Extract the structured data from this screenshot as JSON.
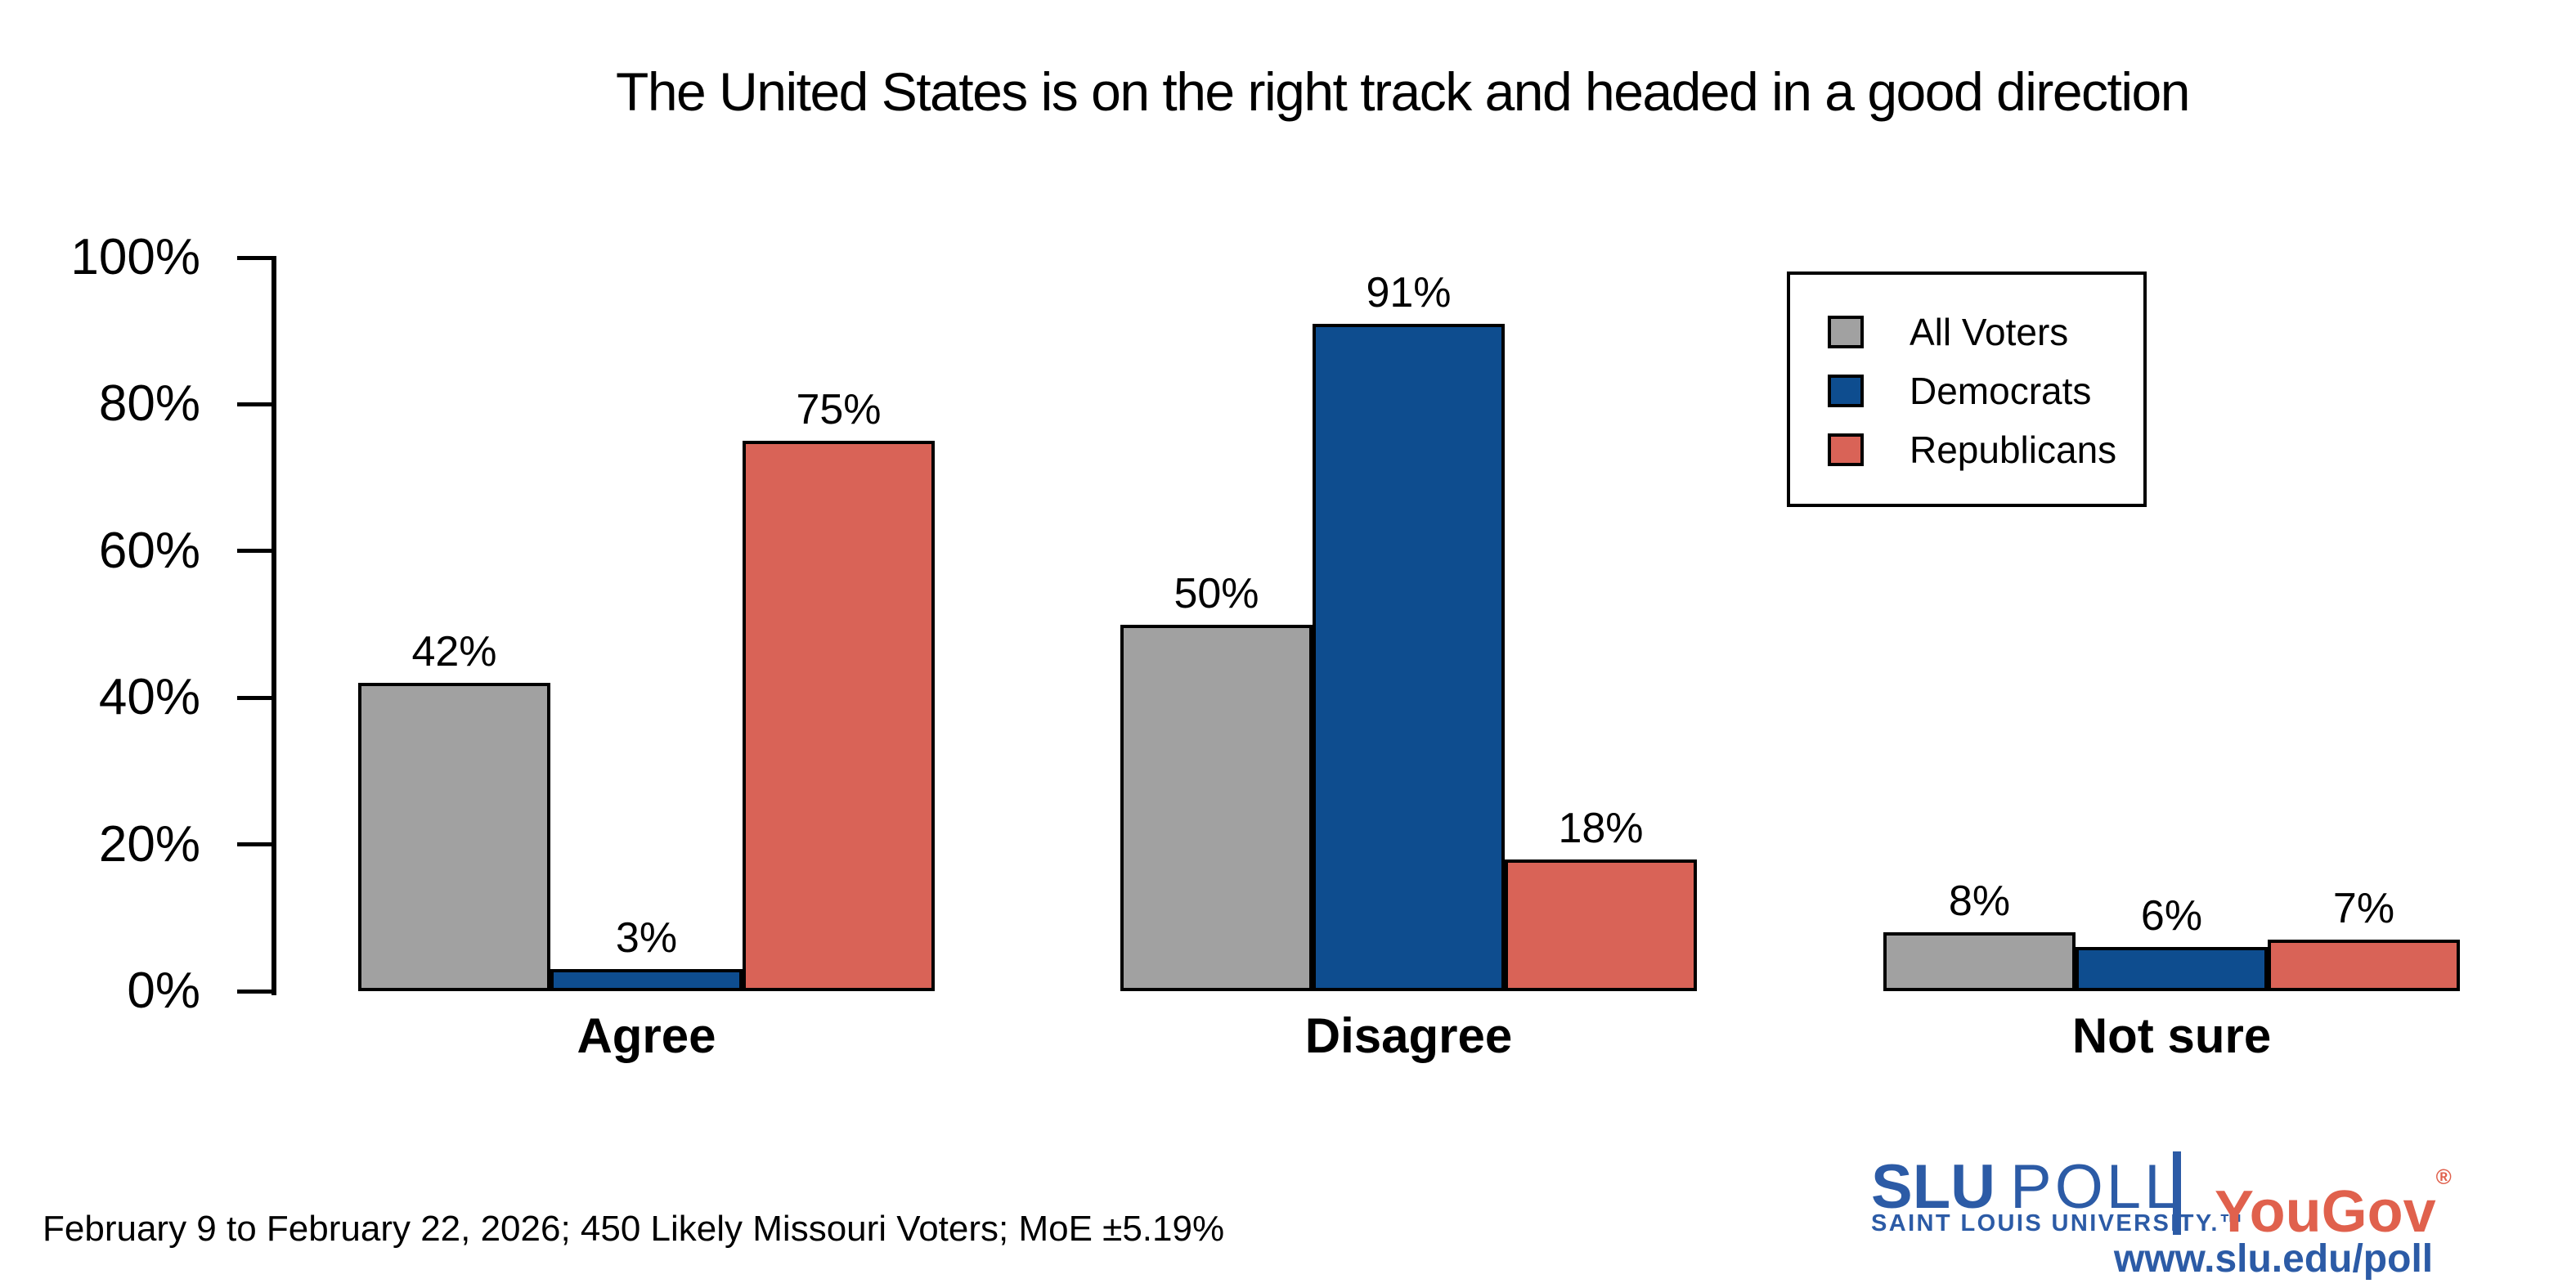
{
  "title": "The United States is on the right track and headed in a good direction",
  "footnote": "February 9 to February 22, 2026; 450 Likely Missouri Voters; MoE ±5.19%",
  "branding": {
    "slu_wordmark": "SLU",
    "poll_wordmark": "POLL",
    "slu_subtitle": "SAINT LOUIS UNIVERSITY.™",
    "partner_wordmark": "YouGov",
    "partner_registered": "®",
    "url": "www.slu.edu/poll",
    "slu_blue": "#2c5ba6",
    "yougov_red": "#e0614d"
  },
  "chart_data": {
    "type": "bar",
    "title": "The United States is on the right track and headed in a good direction",
    "categories": [
      "Agree",
      "Disagree",
      "Not sure"
    ],
    "series": [
      {
        "name": "All Voters",
        "color": "#a1a1a1",
        "values": [
          42,
          50,
          8
        ]
      },
      {
        "name": "Democrats",
        "color": "#0e4d8f",
        "values": [
          3,
          91,
          6
        ]
      },
      {
        "name": "Republicans",
        "color": "#d96357",
        "values": [
          75,
          18,
          7
        ]
      }
    ],
    "value_labels": true,
    "value_suffix": "%",
    "ylim": [
      0,
      100
    ],
    "yticks": [
      0,
      20,
      40,
      60,
      80,
      100
    ],
    "ytick_suffix": "%",
    "xlabel": "",
    "ylabel": "",
    "grid": false,
    "bar_edge_color": "#000000",
    "legend_position": "upper right"
  }
}
